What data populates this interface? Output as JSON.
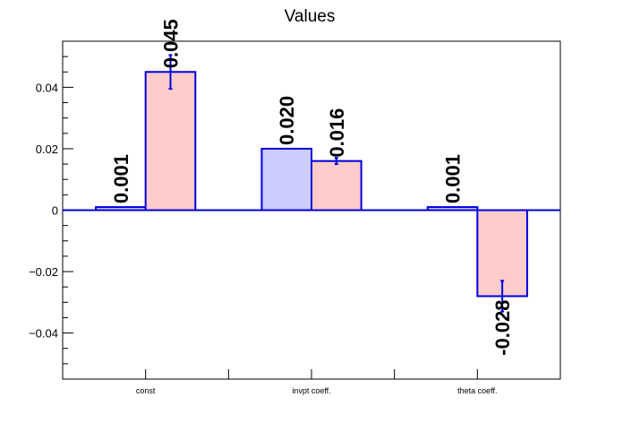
{
  "chart_data": {
    "type": "bar",
    "title": "Values",
    "xlabel": "",
    "ylabel": "",
    "categories": [
      "const",
      "invpt coeff.",
      "theta coeff."
    ],
    "ylim": [
      -0.055,
      0.055
    ],
    "yticks": [
      -0.04,
      -0.02,
      0,
      0.02,
      0.04
    ],
    "ytick_labels": [
      "−0.04",
      "−0.02",
      "0",
      "0.02",
      "0.04"
    ],
    "series": [
      {
        "values": [
          0.001,
          0.02,
          0.001
        ],
        "errors": [
          0,
          0,
          0
        ],
        "labels": [
          "0.001",
          "0.020",
          "0.001"
        ],
        "fill": "#ccccff",
        "stroke": "#0000dd"
      },
      {
        "values": [
          0.045,
          0.016,
          -0.028
        ],
        "errors": [
          0.0055,
          0.001,
          0.005
        ],
        "labels": [
          "0.045",
          "0.016",
          "-0.028"
        ],
        "fill": "#ffcccc",
        "stroke": "#0000dd"
      }
    ],
    "grid": false,
    "colors": {
      "axis": "#000000",
      "bar_stroke": "#0000dd"
    }
  }
}
